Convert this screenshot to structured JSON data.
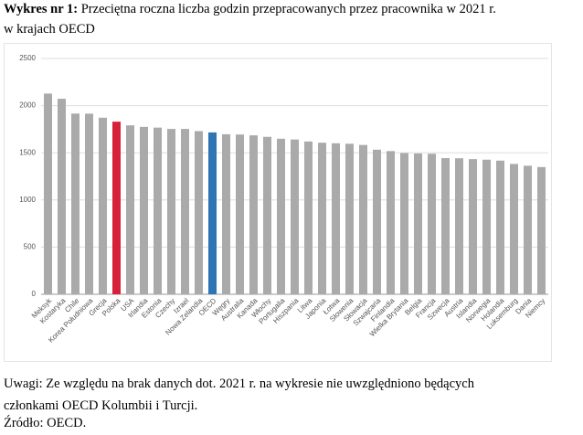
{
  "header": {
    "label": "Wykres nr 1:",
    "title": "Przeciętna roczna liczba godzin przepracowanych przez pracownika w 2021 r.",
    "subtitle": "w krajach OECD"
  },
  "chart_data": {
    "type": "bar",
    "categories": [
      "Meksyk",
      "Kostaryka",
      "Chile",
      "Korea Południowa",
      "Grecja",
      "Polska",
      "USA",
      "Irlandia",
      "Estonia",
      "Czechy",
      "Izrael",
      "Nowa Zelandia",
      "OECD",
      "Węgry",
      "Australia",
      "Kanada",
      "Włochy",
      "Portugalia",
      "Hiszpania",
      "Litwa",
      "Japonia",
      "Łotwa",
      "Słowenia",
      "Słowacja",
      "Szwajcaria",
      "Finlandia",
      "Wielka Brytania",
      "Belgia",
      "Francja",
      "Szwecja",
      "Austria",
      "Islandia",
      "Norwegia",
      "Holandia",
      "Luksemburg",
      "Dania",
      "Niemcy"
    ],
    "values": [
      2128,
      2073,
      1916,
      1915,
      1872,
      1830,
      1791,
      1775,
      1767,
      1753,
      1753,
      1730,
      1716,
      1697,
      1694,
      1685,
      1669,
      1649,
      1641,
      1620,
      1607,
      1601,
      1596,
      1583,
      1533,
      1518,
      1497,
      1493,
      1490,
      1444,
      1442,
      1433,
      1427,
      1417,
      1382,
      1363,
      1349
    ],
    "colors": [
      "#aaaaaa",
      "#aaaaaa",
      "#aaaaaa",
      "#aaaaaa",
      "#aaaaaa",
      "#d6213a",
      "#aaaaaa",
      "#aaaaaa",
      "#aaaaaa",
      "#aaaaaa",
      "#aaaaaa",
      "#aaaaaa",
      "#2f74b5",
      "#aaaaaa",
      "#aaaaaa",
      "#aaaaaa",
      "#aaaaaa",
      "#aaaaaa",
      "#aaaaaa",
      "#aaaaaa",
      "#aaaaaa",
      "#aaaaaa",
      "#aaaaaa",
      "#aaaaaa",
      "#aaaaaa",
      "#aaaaaa",
      "#aaaaaa",
      "#aaaaaa",
      "#aaaaaa",
      "#aaaaaa",
      "#aaaaaa",
      "#aaaaaa",
      "#aaaaaa",
      "#aaaaaa",
      "#aaaaaa",
      "#aaaaaa",
      "#aaaaaa"
    ],
    "ylim": [
      0,
      2500
    ],
    "yticks": [
      0,
      500,
      1000,
      1500,
      2000,
      2500
    ],
    "grid": true
  },
  "notes": "Uwagi: Ze względu na brak danych dot. 2021 r. na wykresie nie uwzględniono będących członkami OECD Kolumbii i Turcji.",
  "source": "Źródło: OECD."
}
